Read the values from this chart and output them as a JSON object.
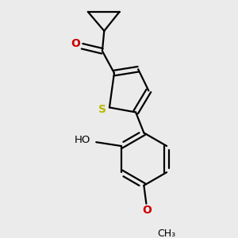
{
  "background_color": "#ebebeb",
  "line_color": "#000000",
  "sulfur_color": "#b8b800",
  "oxygen_color": "#cc0000",
  "line_width": 1.6,
  "figsize": [
    3.0,
    3.0
  ],
  "dpi": 100,
  "xlim": [
    -1.8,
    1.8
  ],
  "ylim": [
    -2.2,
    2.2
  ]
}
